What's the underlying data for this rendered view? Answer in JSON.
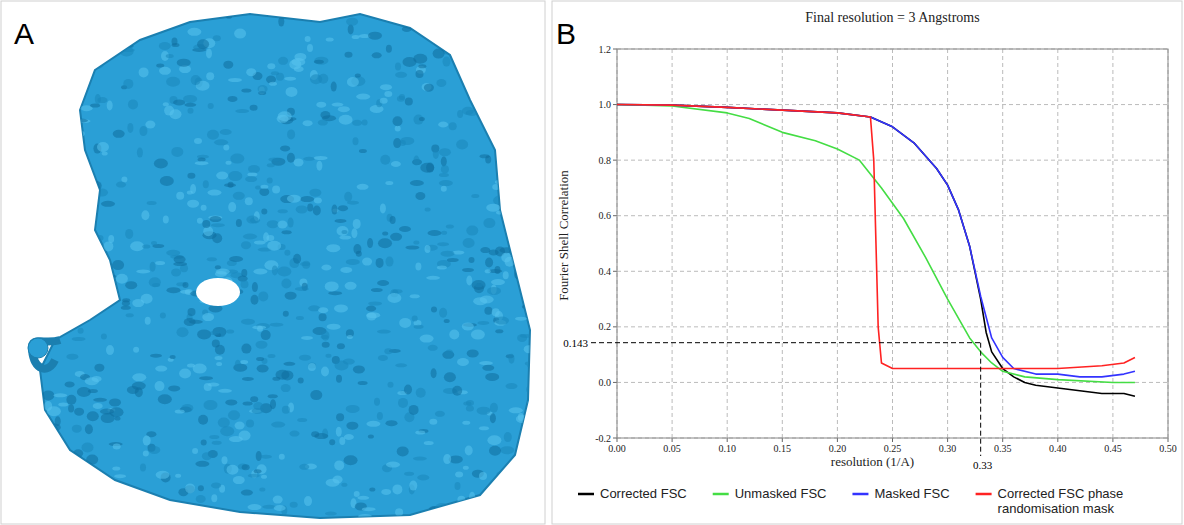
{
  "panel_labels": [
    "A",
    "B"
  ],
  "chart_data": {
    "type": "line",
    "title": "Final resolution = 3 Angstroms",
    "x_label": "resolution (1/A)",
    "y_label": "Fourier Shell Correlation",
    "xlim": [
      0,
      0.5
    ],
    "ylim": [
      -0.2,
      1.2
    ],
    "xticks": [
      {
        "value": 0,
        "label": "0.00"
      },
      {
        "value": 0.05,
        "label": "0.05"
      },
      {
        "value": 0.1,
        "label": "0.10"
      },
      {
        "value": 0.15,
        "label": "0.15"
      },
      {
        "value": 0.2,
        "label": "0.20"
      },
      {
        "value": 0.25,
        "label": "0.25"
      },
      {
        "value": 0.3,
        "label": "0.30"
      },
      {
        "value": 0.35,
        "label": "0.35"
      },
      {
        "value": 0.4,
        "label": "0.40"
      },
      {
        "value": 0.45,
        "label": "0.45"
      },
      {
        "value": 0.5,
        "label": "0.50"
      }
    ],
    "yticks": [
      -0.2,
      {
        "value": 0,
        "label": "0.0"
      },
      0.2,
      0.4,
      0.6,
      0.8,
      {
        "value": 1,
        "label": "1.0"
      },
      1.2
    ],
    "grid": true,
    "legend": "bottom",
    "series": [
      {
        "name": "Corrected FSC",
        "color": "#000000",
        "x": [
          0,
          0.05,
          0.1,
          0.15,
          0.2,
          0.23,
          0.25,
          0.27,
          0.29,
          0.3,
          0.31,
          0.32,
          0.33,
          0.335,
          0.34,
          0.35,
          0.36,
          0.37,
          0.38,
          0.4,
          0.42,
          0.44,
          0.46,
          0.47
        ],
        "values": [
          1.0,
          0.998,
          0.99,
          0.98,
          0.97,
          0.955,
          0.92,
          0.86,
          0.77,
          0.71,
          0.62,
          0.49,
          0.3,
          0.18,
          0.11,
          0.05,
          0.02,
          0.0,
          -0.01,
          -0.02,
          -0.03,
          -0.04,
          -0.04,
          -0.05
        ]
      },
      {
        "name": "Unmasked FSC",
        "color": "#44dd44",
        "x": [
          0,
          0.05,
          0.1,
          0.12,
          0.15,
          0.18,
          0.2,
          0.22,
          0.24,
          0.26,
          0.28,
          0.3,
          0.32,
          0.33,
          0.34,
          0.35,
          0.37,
          0.4,
          0.45,
          0.47
        ],
        "values": [
          1.0,
          0.995,
          0.97,
          0.95,
          0.9,
          0.87,
          0.84,
          0.8,
          0.7,
          0.59,
          0.45,
          0.3,
          0.16,
          0.11,
          0.07,
          0.04,
          0.02,
          0.01,
          0.0,
          0.0
        ]
      },
      {
        "name": "Masked FSC",
        "color": "#3333ff",
        "x": [
          0,
          0.05,
          0.1,
          0.15,
          0.2,
          0.23,
          0.25,
          0.27,
          0.29,
          0.3,
          0.31,
          0.32,
          0.33,
          0.34,
          0.35,
          0.36,
          0.38,
          0.4,
          0.42,
          0.44,
          0.46,
          0.47
        ],
        "values": [
          1.0,
          0.998,
          0.99,
          0.98,
          0.97,
          0.955,
          0.92,
          0.86,
          0.77,
          0.71,
          0.62,
          0.49,
          0.31,
          0.16,
          0.09,
          0.05,
          0.03,
          0.03,
          0.02,
          0.02,
          0.03,
          0.04
        ]
      },
      {
        "name": "Corrected FSC phase randomisation mask",
        "color": "#ff2222",
        "x": [
          0,
          0.05,
          0.1,
          0.15,
          0.2,
          0.23,
          0.233,
          0.235,
          0.237,
          0.24,
          0.25,
          0.3,
          0.35,
          0.4,
          0.44,
          0.46,
          0.47
        ],
        "values": [
          1.0,
          0.998,
          0.99,
          0.98,
          0.97,
          0.955,
          0.8,
          0.5,
          0.2,
          0.07,
          0.05,
          0.05,
          0.05,
          0.05,
          0.06,
          0.07,
          0.09
        ]
      }
    ],
    "annotations": [
      {
        "label": "0.143",
        "y": 0.143,
        "x": 0.33
      },
      {
        "label": "0.33",
        "x": 0.33,
        "y": 0.143
      }
    ]
  }
}
